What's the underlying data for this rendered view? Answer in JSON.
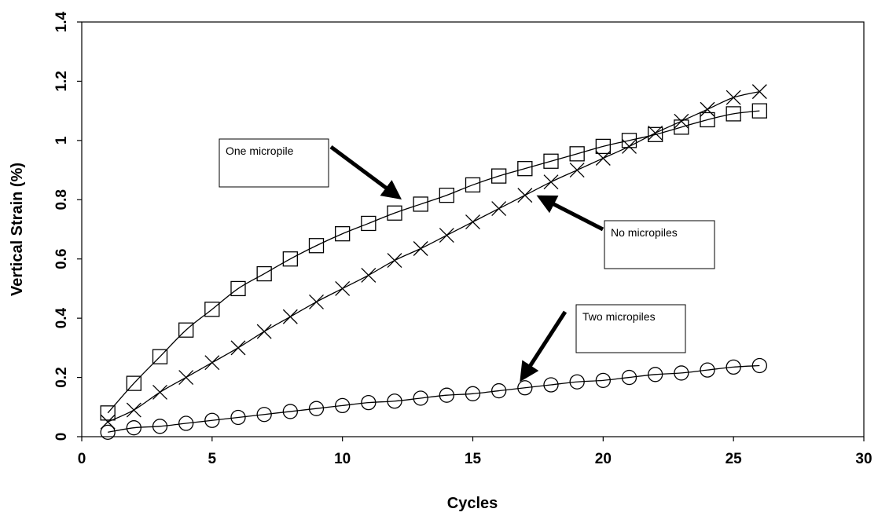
{
  "chart_data": {
    "type": "line",
    "title": "",
    "xlabel": "Cycles",
    "ylabel": "Vertical Strain (%)",
    "xlim": [
      0,
      30
    ],
    "ylim": [
      0,
      1.4
    ],
    "xticks": [
      0,
      5,
      10,
      15,
      20,
      25,
      30
    ],
    "yticks": [
      0,
      0.2,
      0.4,
      0.6,
      0.8,
      1,
      1.2,
      1.4
    ],
    "grid": false,
    "legend": "none",
    "x": [
      1,
      2,
      3,
      4,
      5,
      6,
      7,
      8,
      9,
      10,
      11,
      12,
      13,
      14,
      15,
      16,
      17,
      18,
      19,
      20,
      21,
      22,
      23,
      24,
      25,
      26
    ],
    "series": [
      {
        "name": "One micropile",
        "marker": "square",
        "values": [
          0.08,
          0.18,
          0.27,
          0.36,
          0.43,
          0.5,
          0.55,
          0.6,
          0.645,
          0.685,
          0.72,
          0.755,
          0.785,
          0.815,
          0.85,
          0.88,
          0.905,
          0.93,
          0.955,
          0.98,
          1.0,
          1.02,
          1.045,
          1.07,
          1.09,
          1.1
        ]
      },
      {
        "name": "No micropiles",
        "marker": "x",
        "values": [
          0.05,
          0.09,
          0.15,
          0.2,
          0.25,
          0.3,
          0.355,
          0.405,
          0.455,
          0.5,
          0.545,
          0.595,
          0.635,
          0.68,
          0.725,
          0.77,
          0.815,
          0.86,
          0.9,
          0.94,
          0.98,
          1.025,
          1.065,
          1.105,
          1.145,
          1.165
        ]
      },
      {
        "name": "Two micropiles",
        "marker": "circle",
        "values": [
          0.015,
          0.03,
          0.035,
          0.045,
          0.055,
          0.065,
          0.075,
          0.085,
          0.095,
          0.105,
          0.115,
          0.12,
          0.13,
          0.14,
          0.145,
          0.155,
          0.165,
          0.175,
          0.185,
          0.19,
          0.2,
          0.21,
          0.215,
          0.225,
          0.235,
          0.24
        ]
      }
    ],
    "annotations": [
      {
        "text": "One micropile"
      },
      {
        "text": "No micropiles"
      },
      {
        "text": "Two micropiles"
      }
    ]
  }
}
